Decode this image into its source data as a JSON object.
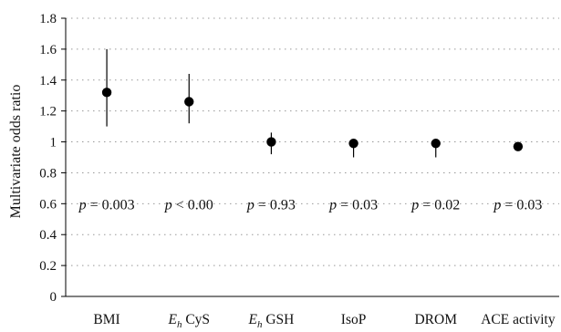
{
  "chart_data": {
    "type": "scatter",
    "ylabel": "Multivariate odds ratio",
    "xlabel": "",
    "ylim": [
      0,
      1.8
    ],
    "yticks": [
      "0",
      "0.2",
      "0.4",
      "0.6",
      "0.8",
      "1",
      "1.2",
      "1.4",
      "1.6",
      "1.8"
    ],
    "grid": true,
    "categories": [
      {
        "pre": "",
        "italic": "",
        "sub": "",
        "post": "BMI"
      },
      {
        "pre": "",
        "italic": "E",
        "sub": "h",
        "post": " CyS"
      },
      {
        "pre": "",
        "italic": "E",
        "sub": "h",
        "post": " GSH"
      },
      {
        "pre": "",
        "italic": "",
        "sub": "",
        "post": "IsoP"
      },
      {
        "pre": "",
        "italic": "",
        "sub": "",
        "post": "DROM"
      },
      {
        "pre": "",
        "italic": "",
        "sub": "",
        "post": "ACE activity"
      }
    ],
    "values": [
      1.32,
      1.26,
      1.0,
      0.99,
      0.99,
      0.97
    ],
    "ci_lower": [
      1.1,
      1.12,
      0.92,
      0.9,
      0.9,
      0.96
    ],
    "ci_upper": [
      1.6,
      1.44,
      1.06,
      0.99,
      0.99,
      0.98
    ],
    "annotations": [
      {
        "symbol": "p",
        "text": " = 0.003"
      },
      {
        "symbol": "p",
        "text": " < 0.00"
      },
      {
        "symbol": "p",
        "text": " = 0.93"
      },
      {
        "symbol": "p",
        "text": " = 0.03"
      },
      {
        "symbol": "p",
        "text": " = 0.02"
      },
      {
        "symbol": "p",
        "text": " = 0.03"
      }
    ],
    "annotation_y": 0.6,
    "colors": {
      "marker": "#000000",
      "axis": "#000000",
      "grid": "#999999"
    }
  }
}
